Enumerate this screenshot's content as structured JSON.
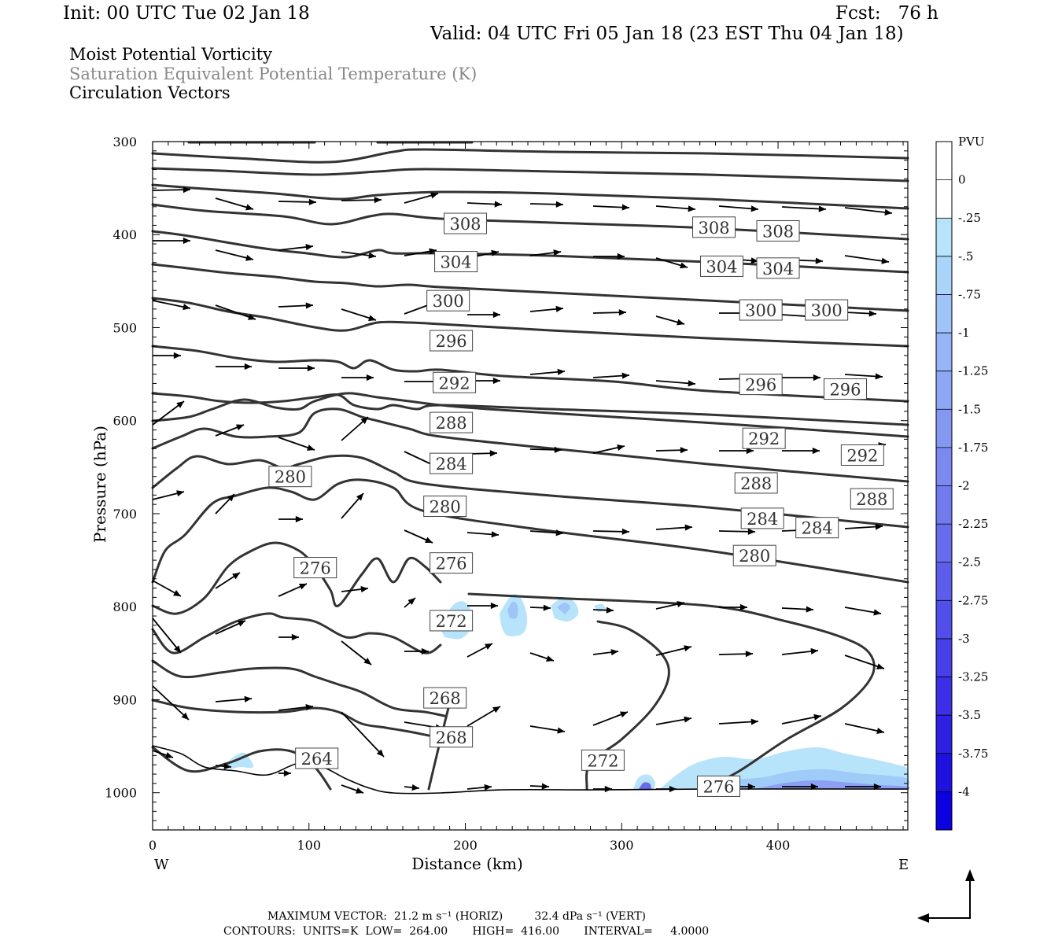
{
  "header": {
    "init": "Init: 00 UTC Tue 02 Jan 18",
    "fcst": "Fcst:   76 h",
    "valid": "Valid: 04 UTC Fri 05 Jan 18 (23 EST Thu 04 Jan 18)"
  },
  "fields": {
    "pv": "Moist Potential Vorticity",
    "theta": "Saturation Equivalent Potential Temperature (K)",
    "vectors": "Circulation Vectors"
  },
  "footer": {
    "max_vector": "MAXIMUM VECTOR:  21.2 m s⁻¹ (HORIZ)         32.4 dPa s⁻¹ (VERT)",
    "contours": "CONTOURS:  UNITS=K  LOW=  264.00       HIGH=  416.00       INTERVAL=     4.0000"
  },
  "colors": {
    "contour": "#333333",
    "vector": "#000000",
    "pv_light": "#b8e4fb",
    "pv_mid": "#8fb1f5",
    "pv_strong": "#3a3ae8"
  },
  "chart_data": {
    "type": "contour",
    "xlabel": "Distance (km)",
    "ylabel": "Pressure (hPa)",
    "xlim": [
      0,
      483
    ],
    "ylim": [
      1040,
      300
    ],
    "x_ticks": [
      0,
      100,
      200,
      300,
      400
    ],
    "y_ticks": [
      300,
      400,
      500,
      600,
      700,
      800,
      900,
      1000
    ],
    "x_end_labels": {
      "left": "W",
      "right": "E"
    },
    "colorbar": {
      "unit": "PVU",
      "levels": [
        "0",
        "-.25",
        "-.5",
        "-.75",
        "-1",
        "-1.25",
        "-1.5",
        "-1.75",
        "-2",
        "-2.25",
        "-2.5",
        "-2.75",
        "-3",
        "-3.25",
        "-3.5",
        "-3.75",
        "-4"
      ],
      "colors": [
        "#ffffff",
        "#ffffff",
        "#b8e4fb",
        "#aad4f9",
        "#9fc4f7",
        "#96b5f6",
        "#8ea7f4",
        "#8498f2",
        "#7b89f0",
        "#717bee",
        "#676ced",
        "#5d5deb",
        "#524ee9",
        "#473fe8",
        "#3b30e6",
        "#2f21e4",
        "#1f10e2",
        "#0a00e0"
      ]
    },
    "contour_labels": [
      {
        "text": "308",
        "x": 200,
        "p": 388
      },
      {
        "text": "308",
        "x": 359,
        "p": 392
      },
      {
        "text": "308",
        "x": 400,
        "p": 396
      },
      {
        "text": "304",
        "x": 194,
        "p": 429
      },
      {
        "text": "304",
        "x": 364,
        "p": 434
      },
      {
        "text": "304",
        "x": 400,
        "p": 436
      },
      {
        "text": "300",
        "x": 189,
        "p": 471
      },
      {
        "text": "300",
        "x": 389,
        "p": 481
      },
      {
        "text": "300",
        "x": 431,
        "p": 481
      },
      {
        "text": "296",
        "x": 191,
        "p": 514
      },
      {
        "text": "296",
        "x": 389,
        "p": 561
      },
      {
        "text": "296",
        "x": 443,
        "p": 566
      },
      {
        "text": "292",
        "x": 193,
        "p": 559
      },
      {
        "text": "292",
        "x": 391,
        "p": 619
      },
      {
        "text": "292",
        "x": 454,
        "p": 637
      },
      {
        "text": "288",
        "x": 191,
        "p": 602
      },
      {
        "text": "288",
        "x": 386,
        "p": 667
      },
      {
        "text": "288",
        "x": 460,
        "p": 684
      },
      {
        "text": "284",
        "x": 191,
        "p": 646
      },
      {
        "text": "284",
        "x": 390,
        "p": 705
      },
      {
        "text": "284",
        "x": 425,
        "p": 715
      },
      {
        "text": "280",
        "x": 88,
        "p": 660
      },
      {
        "text": "280",
        "x": 187,
        "p": 692
      },
      {
        "text": "280",
        "x": 385,
        "p": 745
      },
      {
        "text": "276",
        "x": 104,
        "p": 758
      },
      {
        "text": "276",
        "x": 191,
        "p": 753
      },
      {
        "text": "276",
        "x": 362,
        "p": 993
      },
      {
        "text": "272",
        "x": 191,
        "p": 815
      },
      {
        "text": "272",
        "x": 288,
        "p": 965
      },
      {
        "text": "268",
        "x": 187,
        "p": 898
      },
      {
        "text": "268",
        "x": 191,
        "p": 940
      },
      {
        "text": "264",
        "x": 105,
        "p": 963
      }
    ]
  }
}
